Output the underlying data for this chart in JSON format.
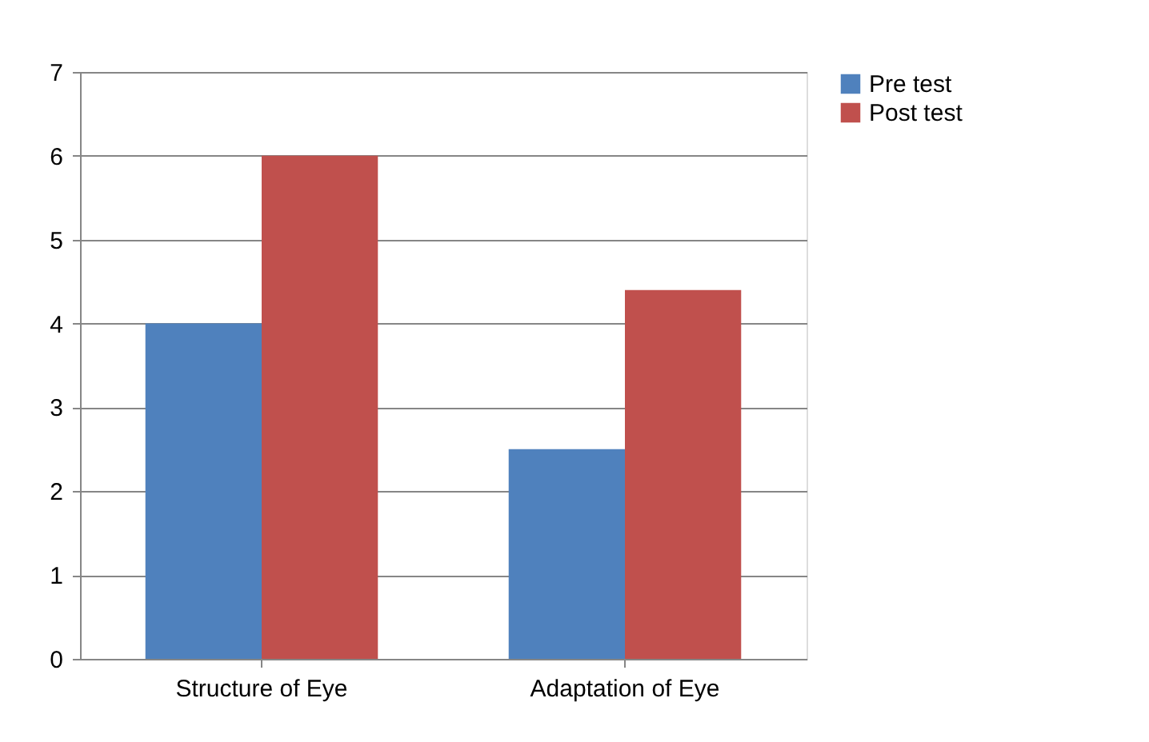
{
  "chart_data": {
    "type": "bar",
    "categories": [
      "Structure of Eye",
      "Adaptation of Eye"
    ],
    "series": [
      {
        "name": "Pre test",
        "color": "#4f81bd",
        "values": [
          4,
          2.5
        ]
      },
      {
        "name": "Post test",
        "color": "#c0504d",
        "values": [
          6,
          4.4
        ]
      }
    ],
    "ylim": [
      0,
      7
    ],
    "yticks": [
      0,
      1,
      2,
      3,
      4,
      5,
      6,
      7
    ],
    "grid": "y",
    "legend": "right"
  }
}
